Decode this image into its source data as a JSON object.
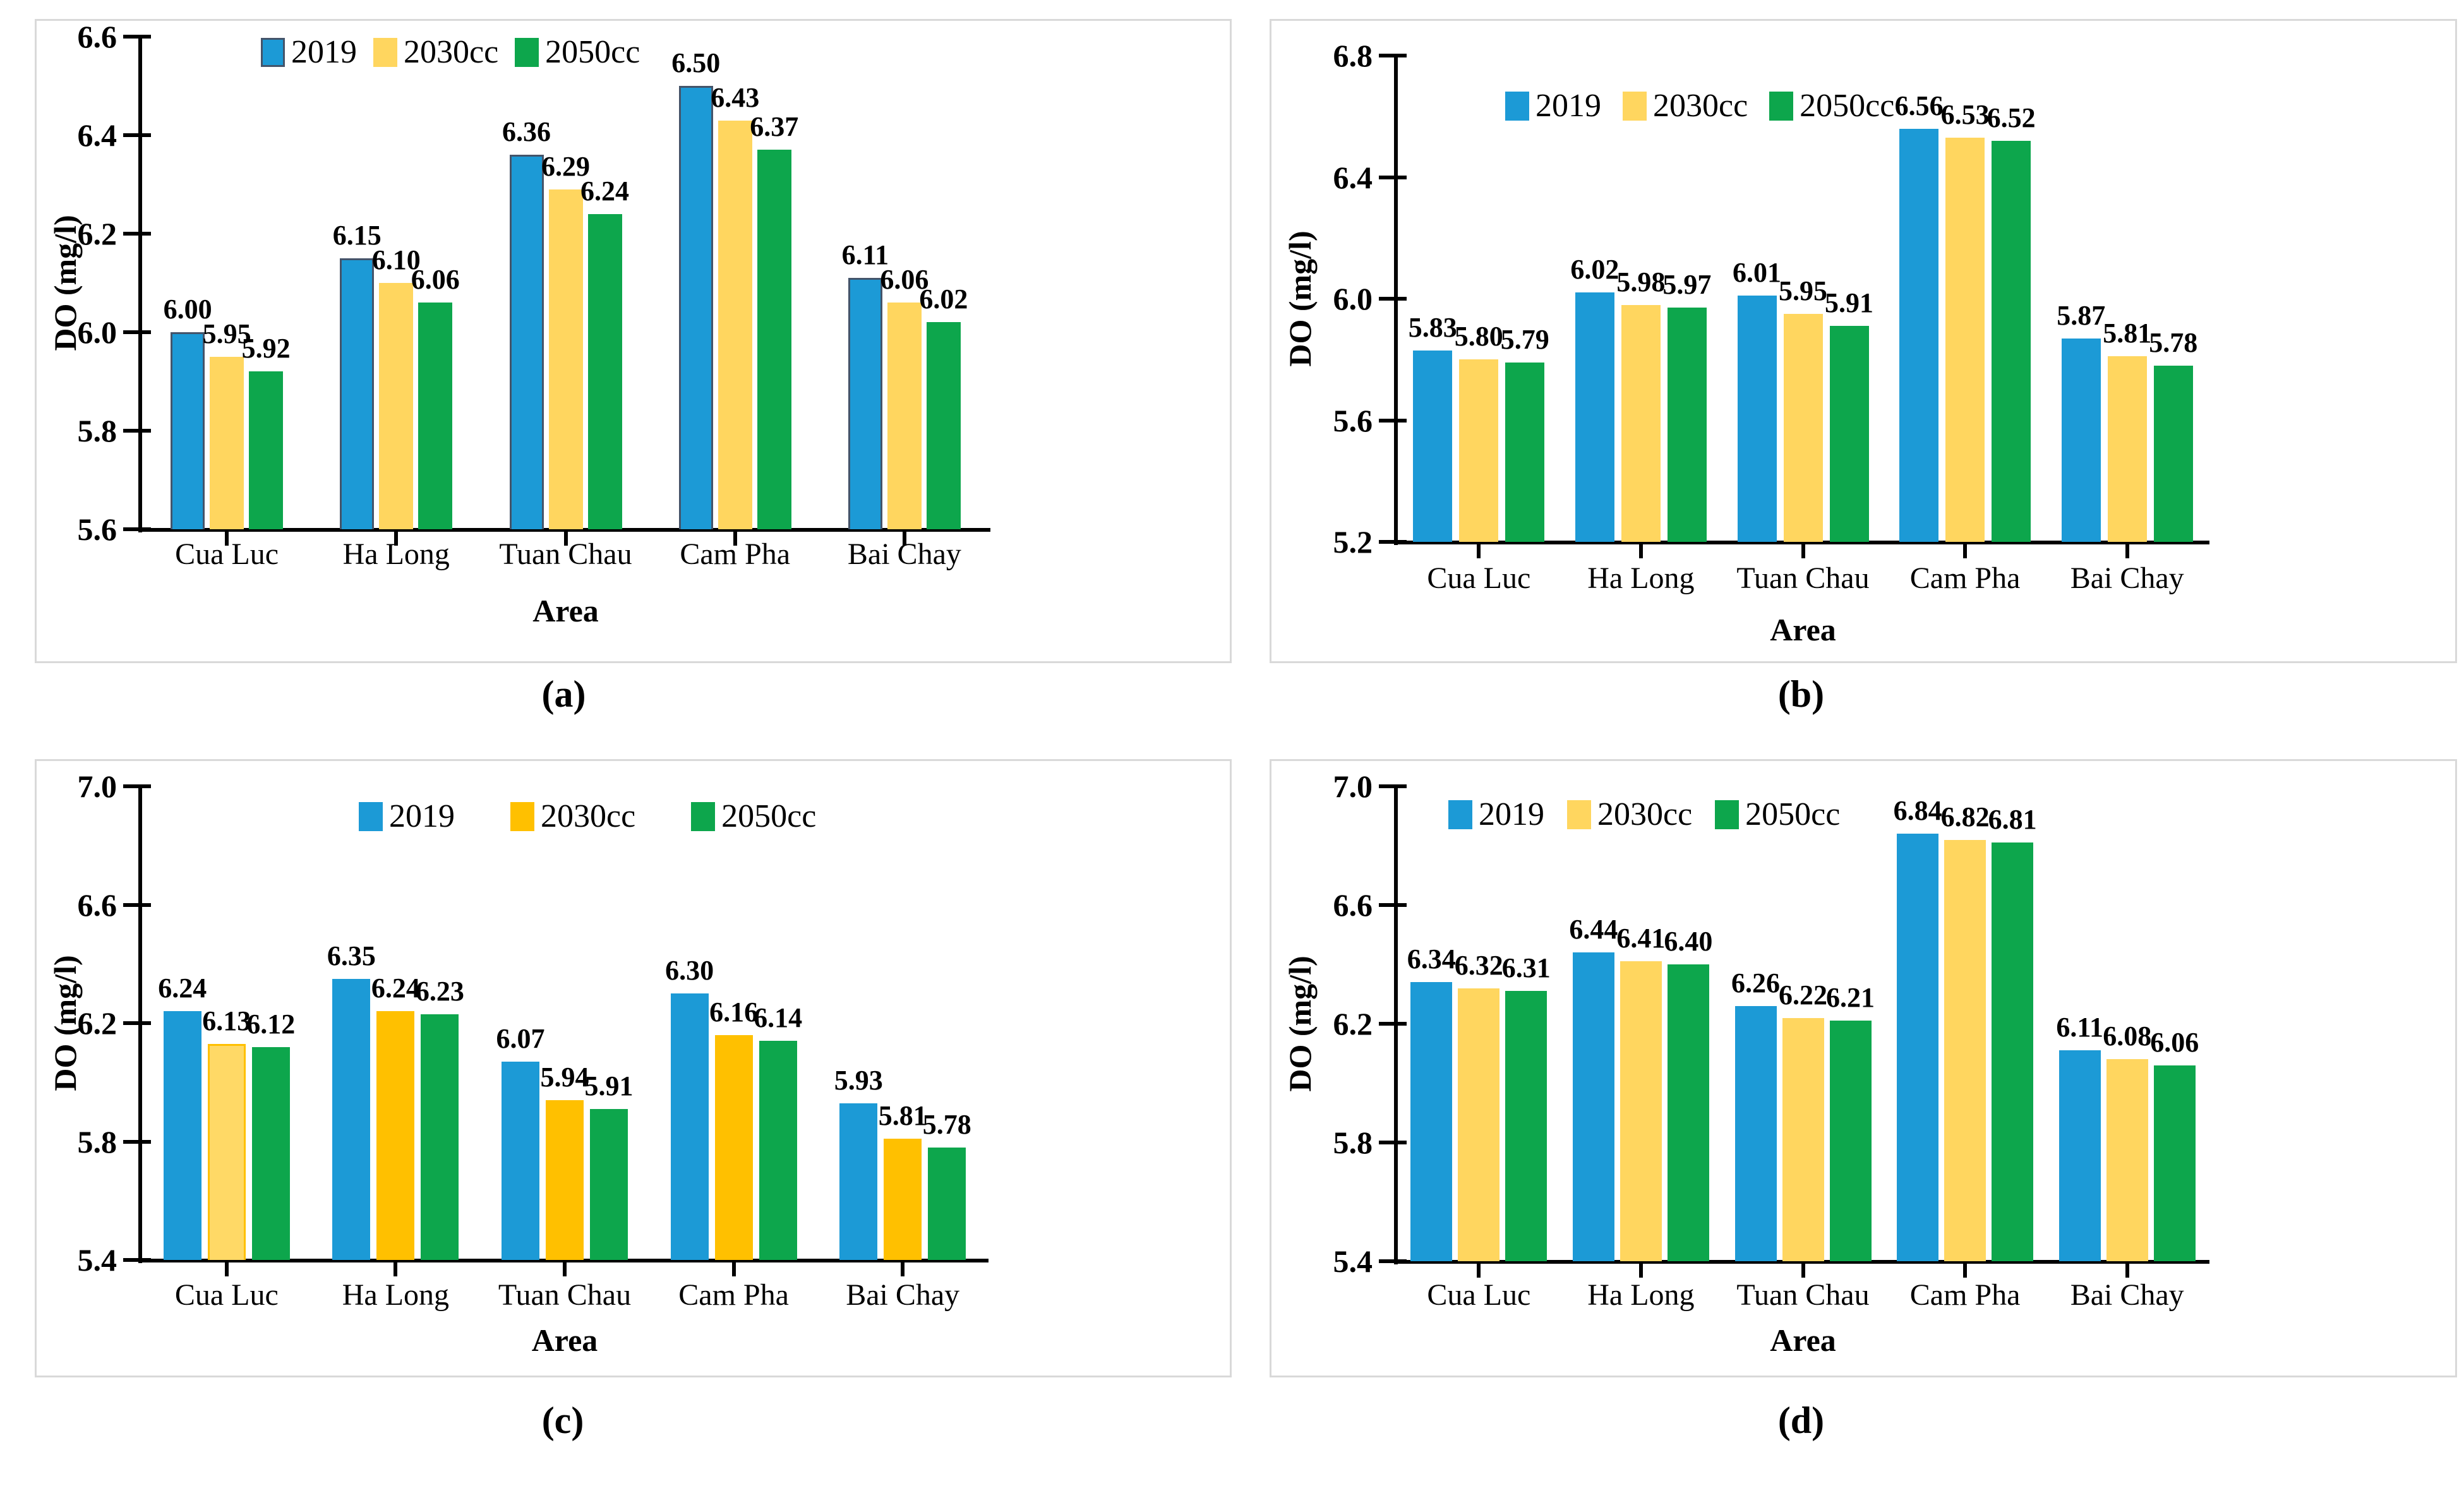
{
  "figure": {
    "ylabel": "DO (mg/l)",
    "xlabel": "Area",
    "legend_entries": [
      "2019",
      "2030cc",
      "2050cc"
    ],
    "background_color": "#ffffff",
    "panel_border_color": "#d9d9d9"
  },
  "chart_data": [
    {
      "id": "a",
      "caption": "(a)",
      "type": "bar",
      "title": "",
      "xlabel": "Area",
      "ylabel": "DO (mg/l)",
      "ylim": [
        5.6,
        6.6
      ],
      "yticks": [
        5.6,
        5.8,
        6.0,
        6.2,
        6.4,
        6.6
      ],
      "ytick_labels": [
        "5.6",
        "5.8",
        "6.0",
        "6.2",
        "6.4",
        "6.6"
      ],
      "categories": [
        "Cua Luc",
        "Ha Long",
        "Tuan Chau",
        "Cam Pha",
        "Bai Chay"
      ],
      "legend_position": "top-inside",
      "grid": false,
      "data_label_decimals": 2,
      "series": [
        {
          "name": "2019",
          "color": "#1C9AD6",
          "border_color": "#44546A",
          "values": [
            6.0,
            6.15,
            6.36,
            6.5,
            6.11
          ]
        },
        {
          "name": "2030cc",
          "color": "#FFD65F",
          "values": [
            5.95,
            6.1,
            6.29,
            6.43,
            6.06
          ]
        },
        {
          "name": "2050cc",
          "color": "#0DA64C",
          "values": [
            5.92,
            6.06,
            6.24,
            6.37,
            6.02
          ]
        }
      ]
    },
    {
      "id": "b",
      "caption": "(b)",
      "type": "bar",
      "title": "",
      "xlabel": "Area",
      "ylabel": "DO (mg/l)",
      "ylim": [
        5.2,
        6.8
      ],
      "yticks": [
        5.2,
        5.6,
        6.0,
        6.4,
        6.8
      ],
      "ytick_labels": [
        "5.2",
        "5.6",
        "6.0",
        "6.4",
        "6.8"
      ],
      "categories": [
        "Cua Luc",
        "Ha Long",
        "Tuan Chau",
        "Cam Pha",
        "Bai Chay"
      ],
      "legend_position": "top-inside",
      "grid": false,
      "data_label_decimals": 2,
      "series": [
        {
          "name": "2019",
          "color": "#1C9AD6",
          "values": [
            5.83,
            6.02,
            6.01,
            6.56,
            5.87
          ]
        },
        {
          "name": "2030cc",
          "color": "#FFD65F",
          "values": [
            5.8,
            5.98,
            5.95,
            6.53,
            5.81
          ]
        },
        {
          "name": "2050cc",
          "color": "#0DA64C",
          "values": [
            5.79,
            5.97,
            5.91,
            6.52,
            5.78
          ]
        }
      ]
    },
    {
      "id": "c",
      "caption": "(c)",
      "type": "bar",
      "title": "",
      "xlabel": "Area",
      "ylabel": "DO (mg/l)",
      "ylim": [
        5.4,
        7.0
      ],
      "yticks": [
        5.4,
        5.8,
        6.2,
        6.6,
        7.0
      ],
      "ytick_labels": [
        "5.4",
        "5.8",
        "6.2",
        "6.6",
        "7.0"
      ],
      "categories": [
        "Cua Luc",
        "Ha Long",
        "Tuan Chau",
        "Cam Pha",
        "Bai Chay"
      ],
      "legend_position": "top-inside",
      "grid": false,
      "data_label_decimals": 2,
      "series": [
        {
          "name": "2019",
          "color": "#1C9AD6",
          "values": [
            6.24,
            6.35,
            6.07,
            6.3,
            5.93
          ]
        },
        {
          "name": "2030cc",
          "color": "#FFC000",
          "values": [
            6.13,
            6.24,
            5.94,
            6.16,
            5.81
          ]
        },
        {
          "name": "2050cc",
          "color": "#0DA64C",
          "values": [
            6.12,
            6.23,
            5.91,
            6.14,
            5.78
          ]
        }
      ],
      "bar_overrides": [
        {
          "series": "2030cc",
          "category": "Cua Luc",
          "color": "#FFD966",
          "border_color": "#FFC000"
        }
      ]
    },
    {
      "id": "d",
      "caption": "(d)",
      "type": "bar",
      "title": "",
      "xlabel": "Area",
      "ylabel": "DO (mg/l)",
      "ylim": [
        5.4,
        7.0
      ],
      "yticks": [
        5.4,
        5.8,
        6.2,
        6.6,
        7.0
      ],
      "ytick_labels": [
        "5.4",
        "5.8",
        "6.2",
        "6.6",
        "7.0"
      ],
      "categories": [
        "Cua Luc",
        "Ha Long",
        "Tuan Chau",
        "Cam Pha",
        "Bai Chay"
      ],
      "legend_position": "top-inside",
      "grid": false,
      "data_label_decimals": 2,
      "series": [
        {
          "name": "2019",
          "color": "#1C9AD6",
          "values": [
            6.34,
            6.44,
            6.26,
            6.84,
            6.11
          ]
        },
        {
          "name": "2030cc",
          "color": "#FFD65F",
          "values": [
            6.32,
            6.41,
            6.22,
            6.82,
            6.08
          ]
        },
        {
          "name": "2050cc",
          "color": "#0DA64C",
          "values": [
            6.31,
            6.4,
            6.21,
            6.81,
            6.06
          ]
        }
      ]
    }
  ]
}
